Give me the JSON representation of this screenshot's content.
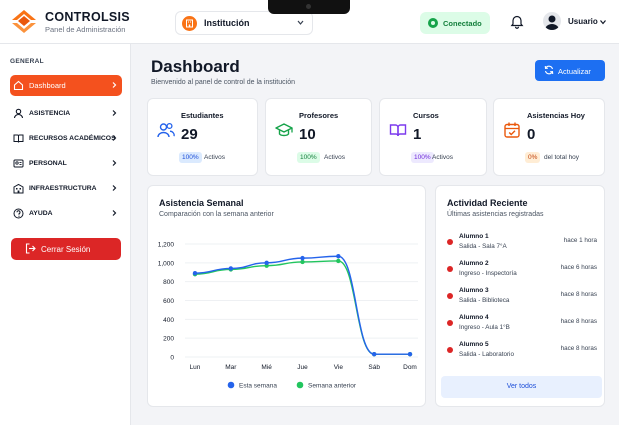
{
  "brand": {
    "name": "CONTROLSIS",
    "subtitle": "Panel de Administración"
  },
  "header": {
    "institution_label": "Institución",
    "status_label": "Conectado",
    "user_name": "Usuario"
  },
  "sidebar": {
    "section_label": "GENERAL",
    "items": [
      {
        "label": "Dashboard",
        "icon": "home-icon",
        "active": true
      },
      {
        "label": "ASISTENCIA",
        "icon": "user-icon"
      },
      {
        "label": "RECURSOS ACADÉMICOS",
        "icon": "book-icon"
      },
      {
        "label": "PERSONAL",
        "icon": "users-icon"
      },
      {
        "label": "INFRAESTRUCTURA",
        "icon": "building-icon"
      },
      {
        "label": "AYUDA",
        "icon": "help-icon"
      }
    ],
    "logout_label": "Cerrar Sesión"
  },
  "main": {
    "title": "Dashboard",
    "subtitle": "Bienvenido al panel de control de la institución",
    "refresh_label": "Actualizar"
  },
  "stats": [
    {
      "title": "Estudiantes",
      "value": "29",
      "badge": "100%",
      "note": "Activos",
      "icon": "users-icon",
      "color": "#2563eb",
      "badge_bg": "#dbeafe"
    },
    {
      "title": "Profesores",
      "value": "10",
      "badge": "100%",
      "note": "Activos",
      "icon": "graduation-cap-icon",
      "color": "#16a34a",
      "badge_bg": "#dcfce7"
    },
    {
      "title": "Cursos",
      "value": "1",
      "badge": "100%",
      "note": "Activos",
      "icon": "book-open-icon",
      "color": "#7c3aed",
      "badge_bg": "#ede9fe"
    },
    {
      "title": "Asistencias Hoy",
      "value": "0",
      "badge": "0%",
      "note": "del total hoy",
      "icon": "calendar-check-icon",
      "color": "#ea580c",
      "badge_bg": "#ffedd5"
    }
  ],
  "weekly": {
    "title": "Asistencia Semanal",
    "subtitle": "Comparación con la semana anterior"
  },
  "chart_data": {
    "type": "line",
    "categories": [
      "Lun",
      "Mar",
      "Mié",
      "Jue",
      "Vie",
      "Sáb",
      "Dom"
    ],
    "series": [
      {
        "name": "Esta semana",
        "color": "#2563eb",
        "values": [
          890,
          940,
          1000,
          1050,
          1070,
          30,
          30
        ]
      },
      {
        "name": "Semana anterior",
        "color": "#22c55e",
        "values": [
          880,
          930,
          970,
          1010,
          1020,
          30,
          30
        ]
      }
    ],
    "yticks": [
      "1,200",
      "1,000",
      "800",
      "600",
      "400",
      "200",
      "0"
    ],
    "ylim": [
      0,
      1200
    ],
    "grid": true,
    "legend": "bottom"
  },
  "activity": {
    "title": "Actividad Reciente",
    "subtitle": "Últimas asistencias registradas",
    "items": [
      {
        "name": "Alumno 1",
        "detail": "Salida - Sala 7°A",
        "time": "hace 1 hora"
      },
      {
        "name": "Alumno 2",
        "detail": "Ingreso - Inspectoría",
        "time": "hace 6 horas"
      },
      {
        "name": "Alumno 3",
        "detail": "Salida - Biblioteca",
        "time": "hace 8 horas"
      },
      {
        "name": "Alumno 4",
        "detail": "Ingreso - Aula 1°B",
        "time": "hace 8 horas"
      },
      {
        "name": "Alumno 5",
        "detail": "Salida - Laboratorio",
        "time": "hace 8 horas"
      }
    ],
    "view_all_label": "Ver todos"
  }
}
